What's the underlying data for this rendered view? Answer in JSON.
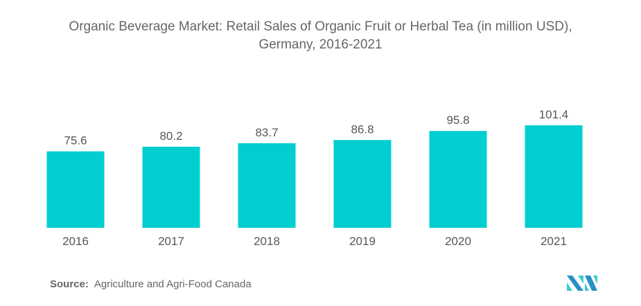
{
  "chart_data": {
    "type": "bar",
    "title": "Organic Beverage Market: Retail Sales of Organic Fruit or Herbal Tea (in million USD),",
    "subtitle": "Germany, 2016-2021",
    "categories": [
      "2016",
      "2017",
      "2018",
      "2019",
      "2020",
      "2021"
    ],
    "values": [
      75.6,
      80.2,
      83.7,
      86.8,
      95.8,
      101.4
    ],
    "value_labels": [
      "75.6",
      "80.2",
      "83.7",
      "86.8",
      "95.8",
      "101.4"
    ],
    "xlabel": "",
    "ylabel": "",
    "ylim": [
      0,
      101.4
    ],
    "grid": false,
    "bar_color": "#00CED1"
  },
  "source": {
    "label": "Source:",
    "text": "Agriculture and Agri-Food Canada"
  },
  "logo": {
    "name": "Mordor Intelligence logo"
  }
}
